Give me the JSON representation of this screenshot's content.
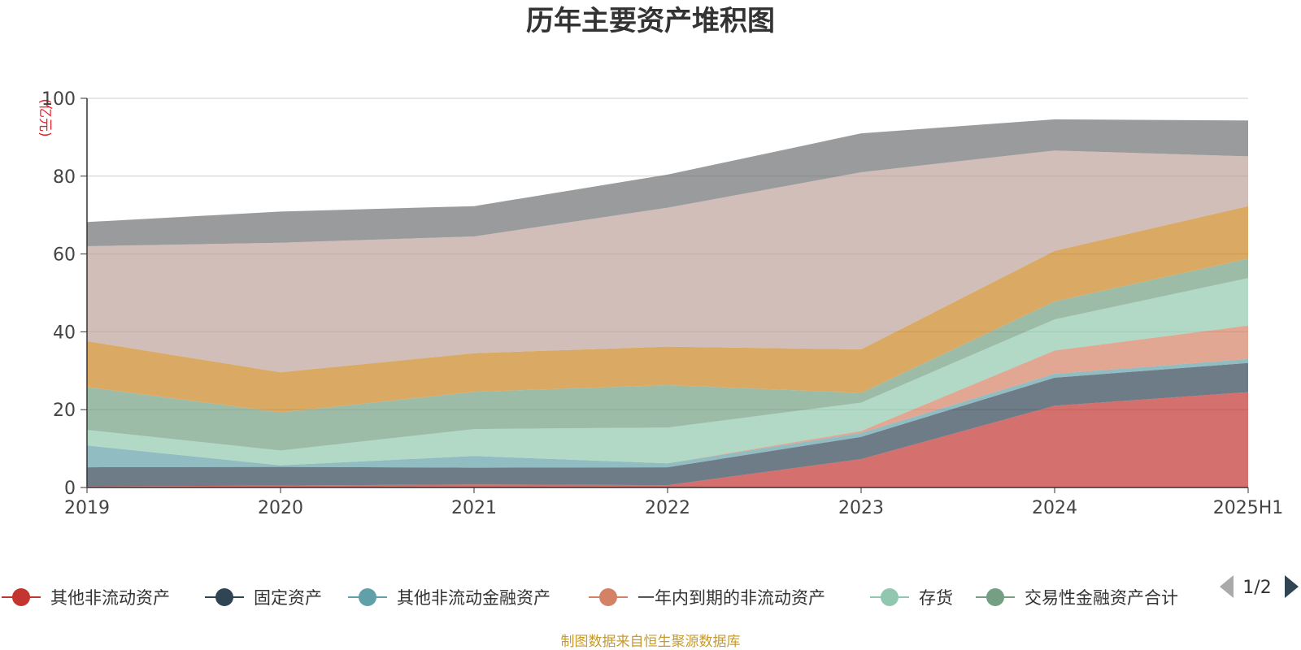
{
  "chart_data": {
    "type": "area",
    "stacked": true,
    "title": "历年主要资产堆积图",
    "unit": "(亿元)",
    "x": [
      "2019",
      "2020",
      "2021",
      "2022",
      "2023",
      "2024",
      "2025H1"
    ],
    "ylim": [
      0,
      100
    ],
    "yticks": [
      0,
      20,
      40,
      60,
      80,
      100
    ],
    "grid": true,
    "legend_position": "bottom",
    "series": [
      {
        "name": "其他非流动资产",
        "color": "#c23531",
        "values": [
          0.3,
          0.5,
          0.8,
          0.6,
          7.3,
          21,
          24.5
        ],
        "in_legend": true
      },
      {
        "name": "固定资产",
        "color": "#2f4554",
        "values": [
          4.9,
          4.8,
          4.3,
          4.6,
          5.7,
          7.2,
          7.5
        ],
        "in_legend": true
      },
      {
        "name": "其他非流动金融资产",
        "color": "#61a0a8",
        "values": [
          5.6,
          0.4,
          3.0,
          1.0,
          1.0,
          1.0,
          1.0
        ],
        "in_legend": true
      },
      {
        "name": "一年内到期的非流动资产",
        "color": "#d48265",
        "values": [
          0,
          0,
          0,
          0,
          0.5,
          6.0,
          8.6
        ],
        "in_legend": true
      },
      {
        "name": "存货",
        "color": "#91c7ae",
        "values": [
          4.0,
          3.8,
          6.9,
          9.2,
          7.3,
          8.0,
          12.2
        ],
        "in_legend": true
      },
      {
        "name": "交易性金融资产合计",
        "color": "#749f83",
        "values": [
          11.0,
          9.8,
          9.6,
          10.9,
          2.5,
          4.6,
          5.0
        ],
        "in_legend": true
      },
      {
        "name": "",
        "color": "#ca8622",
        "values": [
          11.8,
          10.3,
          9.9,
          9.9,
          11.2,
          13.0,
          13.5
        ],
        "in_legend": false
      },
      {
        "name": "",
        "color": "#bda29a",
        "values": [
          24.4,
          33.3,
          30.0,
          35.7,
          45.5,
          25.8,
          12.8
        ],
        "in_legend": false
      },
      {
        "name": "",
        "color": "#6e7074",
        "values": [
          6.2,
          8.0,
          7.8,
          8.5,
          10.0,
          8.0,
          9.2
        ],
        "in_legend": false
      }
    ]
  },
  "legend": {
    "page_indicator": "1/2",
    "prev_icon": "triangle-left-icon",
    "next_icon": "triangle-right-icon"
  },
  "footer": {
    "source": "制图数据来自恒生聚源数据库"
  }
}
